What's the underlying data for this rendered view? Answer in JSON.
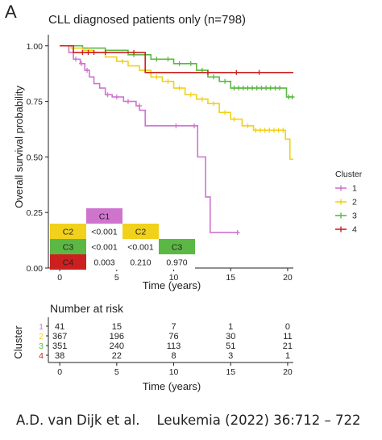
{
  "panel_label": "A",
  "citation": {
    "authors": "A.D. van Dijk et al.",
    "journal": "Leukemia (2022) 36:712 – 722"
  },
  "colors": {
    "1": "#cf74cd",
    "2": "#f1d11b",
    "3": "#5cb844",
    "4": "#cc2020"
  },
  "chart_data": {
    "type": "line",
    "title": "CLL diagnosed patients only (n=798)",
    "xlabel": "Time (years)",
    "ylabel": "Overall survival probability",
    "xlim": [
      -1,
      20.5
    ],
    "ylim": [
      0,
      1.05
    ],
    "xticks": [
      "0",
      "5",
      "10",
      "15",
      "20"
    ],
    "xtick_values": [
      0,
      5,
      10,
      15,
      20
    ],
    "yticks": [
      "0.00",
      "0.25",
      "0.50",
      "0.75",
      "1.00"
    ],
    "ytick_values": [
      0,
      0.25,
      0.5,
      0.75,
      1.0
    ],
    "grid": false,
    "legend": {
      "title": "Cluster",
      "position": "right",
      "entries": [
        "1",
        "2",
        "3",
        "4"
      ]
    },
    "series": [
      {
        "name": "1",
        "color": "#cf74cd",
        "steps": [
          [
            0,
            1.0
          ],
          [
            0.8,
            0.97
          ],
          [
            1.2,
            0.94
          ],
          [
            1.8,
            0.92
          ],
          [
            2.2,
            0.89
          ],
          [
            2.6,
            0.86
          ],
          [
            3.0,
            0.83
          ],
          [
            3.5,
            0.81
          ],
          [
            4.0,
            0.78
          ],
          [
            4.6,
            0.77
          ],
          [
            5.6,
            0.75
          ],
          [
            6.7,
            0.73
          ],
          [
            7.0,
            0.71
          ],
          [
            7.5,
            0.64
          ],
          [
            12.1,
            0.5
          ],
          [
            12.8,
            0.32
          ],
          [
            13.2,
            0.16
          ],
          [
            15.6,
            0.16
          ]
        ],
        "censors": [
          [
            1.4,
            0.94
          ],
          [
            1.9,
            0.92
          ],
          [
            2.4,
            0.89
          ],
          [
            4.2,
            0.78
          ],
          [
            5.0,
            0.77
          ],
          [
            6.0,
            0.75
          ],
          [
            7.0,
            0.73
          ],
          [
            10.2,
            0.64
          ],
          [
            11.8,
            0.64
          ],
          [
            15.6,
            0.16
          ]
        ]
      },
      {
        "name": "2",
        "color": "#f1d11b",
        "steps": [
          [
            0,
            1.0
          ],
          [
            1.0,
            0.99
          ],
          [
            2.0,
            0.98
          ],
          [
            3.0,
            0.97
          ],
          [
            4.0,
            0.95
          ],
          [
            5.0,
            0.93
          ],
          [
            6.0,
            0.91
          ],
          [
            7.0,
            0.89
          ],
          [
            8.0,
            0.86
          ],
          [
            9.0,
            0.84
          ],
          [
            10.0,
            0.81
          ],
          [
            11.0,
            0.78
          ],
          [
            12.0,
            0.76
          ],
          [
            13.0,
            0.74
          ],
          [
            14.0,
            0.7
          ],
          [
            15.0,
            0.67
          ],
          [
            16.0,
            0.64
          ],
          [
            17.0,
            0.62
          ],
          [
            19.8,
            0.58
          ],
          [
            20.2,
            0.49
          ],
          [
            20.5,
            0.49
          ]
        ],
        "censors": [
          [
            2.5,
            0.98
          ],
          [
            5.5,
            0.93
          ],
          [
            7.5,
            0.89
          ],
          [
            8.5,
            0.86
          ],
          [
            9.5,
            0.84
          ],
          [
            10.5,
            0.81
          ],
          [
            11.5,
            0.78
          ],
          [
            12.5,
            0.76
          ],
          [
            13.5,
            0.74
          ],
          [
            14.5,
            0.7
          ],
          [
            15.3,
            0.67
          ],
          [
            16.5,
            0.64
          ],
          [
            17.2,
            0.62
          ],
          [
            17.6,
            0.62
          ],
          [
            18.0,
            0.62
          ],
          [
            18.4,
            0.62
          ],
          [
            18.8,
            0.62
          ],
          [
            19.2,
            0.62
          ],
          [
            19.6,
            0.62
          ]
        ]
      },
      {
        "name": "3",
        "color": "#5cb844",
        "steps": [
          [
            0,
            1.0
          ],
          [
            2.0,
            0.99
          ],
          [
            4.0,
            0.98
          ],
          [
            6.0,
            0.96
          ],
          [
            8.0,
            0.94
          ],
          [
            10.0,
            0.92
          ],
          [
            12.0,
            0.89
          ],
          [
            13.0,
            0.86
          ],
          [
            14.0,
            0.84
          ],
          [
            15.0,
            0.81
          ],
          [
            19.9,
            0.77
          ],
          [
            20.5,
            0.77
          ]
        ],
        "censors": [
          [
            6.5,
            0.96
          ],
          [
            7.5,
            0.96
          ],
          [
            8.5,
            0.94
          ],
          [
            9.5,
            0.94
          ],
          [
            10.5,
            0.92
          ],
          [
            11.5,
            0.92
          ],
          [
            12.5,
            0.89
          ],
          [
            13.5,
            0.86
          ],
          [
            14.5,
            0.84
          ],
          [
            15.3,
            0.81
          ],
          [
            15.7,
            0.81
          ],
          [
            16.1,
            0.81
          ],
          [
            16.5,
            0.81
          ],
          [
            16.9,
            0.81
          ],
          [
            17.3,
            0.81
          ],
          [
            17.7,
            0.81
          ],
          [
            18.1,
            0.81
          ],
          [
            18.5,
            0.81
          ],
          [
            18.9,
            0.81
          ],
          [
            19.3,
            0.81
          ],
          [
            20.1,
            0.77
          ],
          [
            20.4,
            0.77
          ]
        ]
      },
      {
        "name": "4",
        "color": "#cc2020",
        "steps": [
          [
            0,
            1.0
          ],
          [
            1.2,
            0.97
          ],
          [
            7.5,
            0.88
          ],
          [
            20.5,
            0.88
          ]
        ],
        "censors": [
          [
            2.0,
            0.97
          ],
          [
            2.5,
            0.97
          ],
          [
            3.0,
            0.97
          ],
          [
            4.0,
            0.97
          ],
          [
            6.5,
            0.97
          ],
          [
            13.0,
            0.88
          ],
          [
            15.5,
            0.88
          ],
          [
            17.5,
            0.88
          ]
        ]
      }
    ],
    "pvalue_table": {
      "columns": [
        "C1",
        "C2",
        "C3"
      ],
      "rows": [
        {
          "label": "C2",
          "values": [
            "<0.001"
          ]
        },
        {
          "label": "C3",
          "values": [
            "<0.001",
            "<0.001"
          ]
        },
        {
          "label": "C4",
          "values": [
            "0.003",
            "0.210",
            "0.970"
          ]
        }
      ]
    },
    "risk_table": {
      "title": "Number at risk",
      "ylabel": "Cluster",
      "xlabel": "Time (years)",
      "times": [
        0,
        5,
        10,
        15,
        20
      ],
      "rows": [
        {
          "cluster": "1",
          "counts": [
            "41",
            "15",
            "7",
            "1",
            "0"
          ]
        },
        {
          "cluster": "2",
          "counts": [
            "367",
            "196",
            "76",
            "30",
            "11"
          ]
        },
        {
          "cluster": "3",
          "counts": [
            "351",
            "240",
            "113",
            "51",
            "21"
          ]
        },
        {
          "cluster": "4",
          "counts": [
            "38",
            "22",
            "8",
            "3",
            "1"
          ]
        }
      ]
    }
  }
}
